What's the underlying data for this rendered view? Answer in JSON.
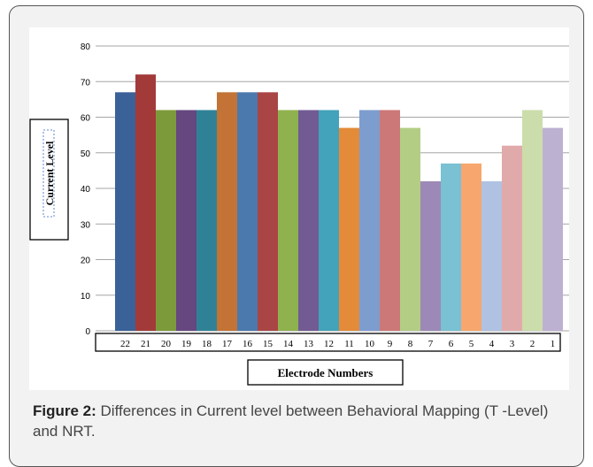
{
  "chart_data": {
    "type": "bar",
    "categories": [
      "22",
      "21",
      "20",
      "19",
      "18",
      "17",
      "16",
      "15",
      "14",
      "13",
      "12",
      "11",
      "10",
      "9",
      "8",
      "7",
      "6",
      "5",
      "4",
      "3",
      "2",
      "1"
    ],
    "values": [
      67,
      72,
      62,
      62,
      62,
      67,
      67,
      67,
      62,
      62,
      62,
      57,
      62,
      62,
      57,
      42,
      47,
      47,
      42,
      52,
      62,
      57
    ],
    "colors": [
      "#3a6298",
      "#a23a3a",
      "#7d9a3a",
      "#66477f",
      "#2f8296",
      "#c27335",
      "#4c79ad",
      "#aa4545",
      "#8fb14e",
      "#725b93",
      "#43a3ba",
      "#e38b39",
      "#7e9dcf",
      "#cd7878",
      "#b3cd85",
      "#9d89b7",
      "#79c1d3",
      "#f7a66d",
      "#b0c2e2",
      "#e1aaaa",
      "#cbddaa",
      "#bdb1d2"
    ],
    "ylim": [
      0,
      80
    ],
    "yticks": [
      0,
      10,
      20,
      30,
      40,
      50,
      60,
      70,
      80
    ],
    "xlabel": "Electrode Numbers",
    "ylabel": "Current Level",
    "grid": true
  },
  "caption": {
    "label": "Figure 2:",
    "text": " Differences in Current level between Behavioral Mapping (T -Level) and NRT."
  }
}
